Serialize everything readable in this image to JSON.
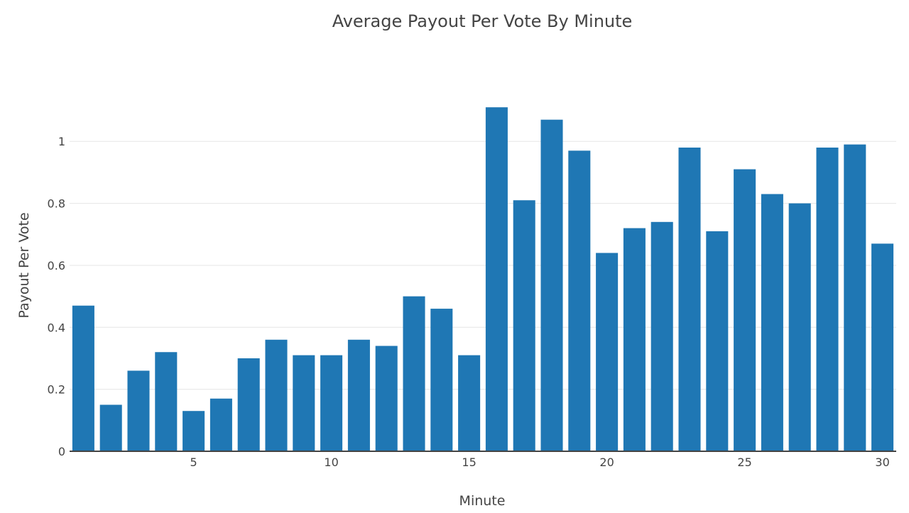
{
  "chart_data": {
    "type": "bar",
    "title": "Average Payout Per Vote By Minute",
    "xlabel": "Minute",
    "ylabel": "Payout Per Vote",
    "categories": [
      1,
      2,
      3,
      4,
      5,
      6,
      7,
      8,
      9,
      10,
      11,
      12,
      13,
      14,
      15,
      16,
      17,
      18,
      19,
      20,
      21,
      22,
      23,
      24,
      25,
      26,
      27,
      28,
      29,
      30
    ],
    "values": [
      0.47,
      0.15,
      0.26,
      0.32,
      0.13,
      0.17,
      0.3,
      0.36,
      0.31,
      0.31,
      0.36,
      0.34,
      0.5,
      0.46,
      0.31,
      1.11,
      0.81,
      1.07,
      0.97,
      0.64,
      0.72,
      0.74,
      0.98,
      0.71,
      0.91,
      0.83,
      0.8,
      0.98,
      0.99,
      0.67
    ],
    "x_ticks": [
      5,
      10,
      15,
      20,
      25,
      30
    ],
    "y_ticks": [
      0,
      0.2,
      0.4,
      0.6,
      0.8,
      1
    ],
    "y_tick_labels": [
      "0",
      "0.2",
      "0.4",
      "0.6",
      "0.8",
      "1"
    ],
    "ylim": [
      0,
      1.17
    ],
    "xlim": [
      0.5,
      30.5
    ],
    "grid": true,
    "colors": {
      "bar": "#1f77b4"
    }
  }
}
